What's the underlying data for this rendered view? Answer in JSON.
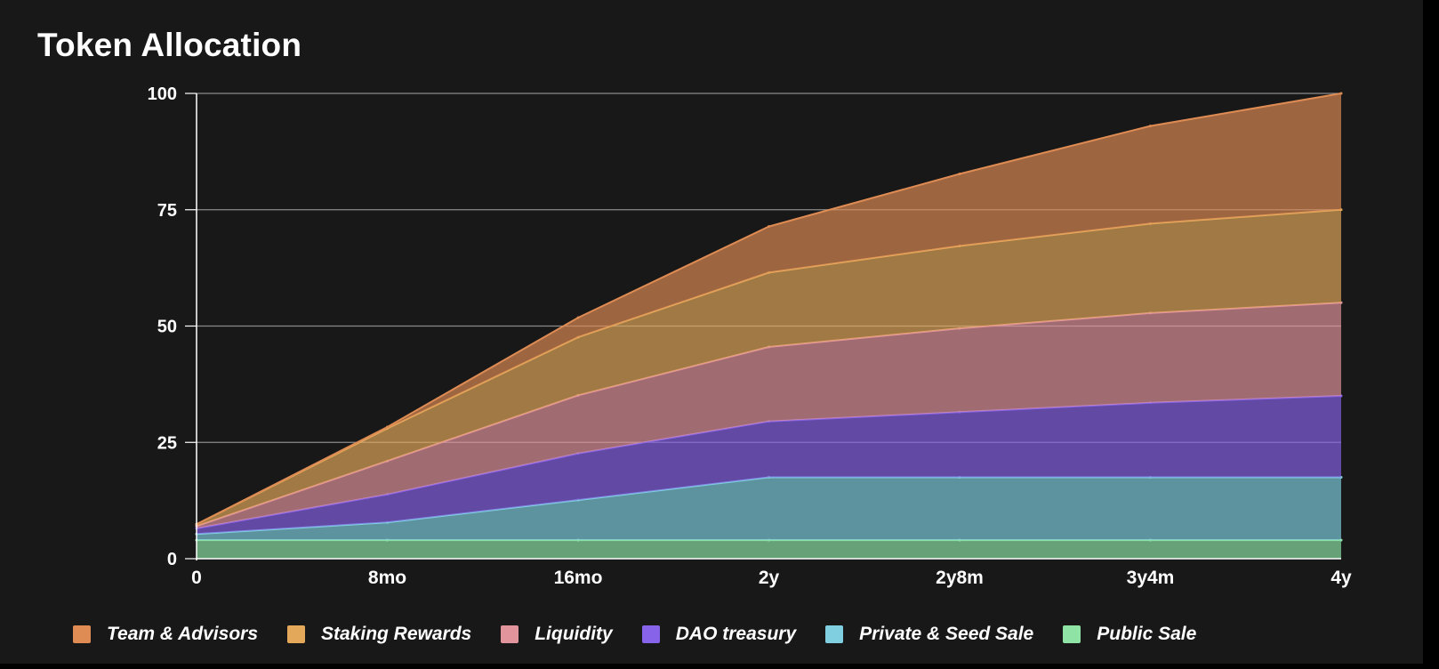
{
  "chart_data": {
    "type": "area",
    "stacked": true,
    "title": "Token Allocation",
    "xlabel": "",
    "ylabel": "",
    "x": [
      "0",
      "8mo",
      "16mo",
      "2y",
      "2y8m",
      "3y4m",
      "4y"
    ],
    "x_values": [
      0,
      8,
      16,
      24,
      32,
      40,
      48
    ],
    "ylim": [
      0,
      100
    ],
    "yticks": [
      0,
      25,
      50,
      75,
      100
    ],
    "grid": true,
    "legend_position": "bottom",
    "series": [
      {
        "name": "Public Sale",
        "color": "#8ee3a5",
        "values": [
          4,
          4,
          4,
          4,
          4,
          4,
          4
        ]
      },
      {
        "name": "Private & Seed Sale",
        "color": "#7fcfe0",
        "values": [
          1.3,
          3.8,
          8.6,
          13.5,
          13.5,
          13.5,
          13.5
        ]
      },
      {
        "name": "DAO treasury",
        "color": "#8663e8",
        "values": [
          1.2,
          6,
          10,
          12,
          14,
          16,
          17.5
        ]
      },
      {
        "name": "Liquidity",
        "color": "#e1949c",
        "values": [
          0.5,
          7.2,
          12.5,
          16,
          18,
          19.3,
          20
        ]
      },
      {
        "name": "Staking Rewards",
        "color": "#e3a85a",
        "values": [
          0.4,
          7,
          12.5,
          16,
          17.7,
          19.2,
          20
        ]
      },
      {
        "name": "Team & Advisors",
        "color": "#df8c54",
        "values": [
          0,
          0.3,
          4.2,
          9.9,
          15.5,
          21,
          25
        ]
      }
    ]
  },
  "legend_order": [
    "Team & Advisors",
    "Staking Rewards",
    "Liquidity",
    "DAO treasury",
    "Private & Seed Sale",
    "Public Sale"
  ]
}
